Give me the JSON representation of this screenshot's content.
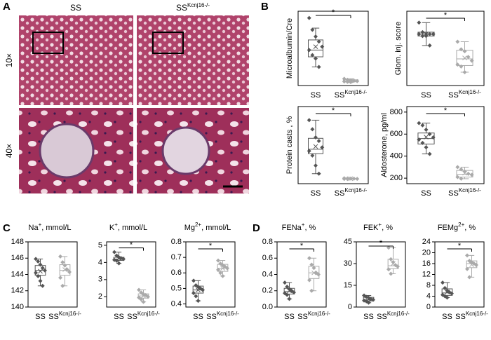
{
  "panels": [
    "A",
    "B",
    "C",
    "D"
  ],
  "panel_a": {
    "columns": [
      "SS",
      {
        "base": "SS",
        "sup": "Kcnj16-/-"
      }
    ],
    "rows": [
      "10×",
      "40×"
    ]
  },
  "chart_data": [
    {
      "type": "box",
      "ylabel": [
        {
          "text": "Microalbumin/Cre"
        }
      ],
      "annotation": "*",
      "categories": [
        {
          "base": "SS"
        },
        {
          "base": "SS",
          "sup": "Kcnj16-/-"
        }
      ],
      "ylim": [
        -0.1,
        2.1
      ],
      "boxes": [
        {
          "color": "#555555",
          "whislo": 0.45,
          "q1": 0.75,
          "med": 0.95,
          "q3": 1.25,
          "whishi": 1.6,
          "mean": 1.05,
          "points": [
            1.9,
            1.55,
            1.35,
            1.2,
            1.05,
            0.95,
            0.8,
            0.7,
            0.45
          ]
        },
        {
          "color": "#aaaaaa",
          "whislo": 0,
          "q1": 0.01,
          "med": 0.03,
          "q3": 0.07,
          "whishi": 0.1,
          "mean": 0.04,
          "points": [
            0.1,
            0.07,
            0.05,
            0.04,
            0.03,
            0.02,
            0.01,
            0
          ]
        }
      ]
    },
    {
      "type": "box",
      "ylabel": [
        {
          "text": "Glom. inj. score"
        }
      ],
      "annotation": "*",
      "categories": [
        {
          "base": "SS"
        },
        {
          "base": "SS",
          "sup": "Kcnj16-/-"
        }
      ],
      "ylim": [
        0.3,
        4.2
      ],
      "boxes": [
        {
          "color": "#555555",
          "whislo": 2.4,
          "q1": 2.9,
          "med": 3,
          "q3": 3.1,
          "whishi": 3.6,
          "mean": 3,
          "points": [
            3.6,
            3.1,
            3,
            3,
            3,
            3,
            2.9,
            2.9,
            2.4
          ]
        },
        {
          "color": "#aaaaaa",
          "whislo": 1.0,
          "q1": 1.35,
          "med": 1.7,
          "q3": 2.15,
          "whishi": 2.6,
          "mean": 1.75,
          "points": [
            2.6,
            2.2,
            2.1,
            1.8,
            1.6,
            1.4,
            1.3,
            1.0
          ]
        }
      ]
    },
    {
      "type": "box",
      "ylabel": [
        {
          "text": "Protein casts , %"
        }
      ],
      "annotation": "*",
      "categories": [
        {
          "base": "SS"
        },
        {
          "base": "SS",
          "sup": "Kcnj16-/-"
        }
      ],
      "ylim": [
        -0.5,
        8
      ],
      "boxes": [
        {
          "color": "#555555",
          "whislo": 0.6,
          "q1": 2.8,
          "med": 3.3,
          "q3": 4.5,
          "whishi": 6.5,
          "mean": 3.6,
          "points": [
            6.5,
            5.5,
            4.6,
            4.2,
            3.5,
            3.1,
            2.6,
            1.5,
            0.6
          ]
        },
        {
          "color": "#aaaaaa",
          "whislo": 0.01,
          "q1": 0.02,
          "med": 0.05,
          "q3": 0.08,
          "whishi": 0.1,
          "mean": 0.05,
          "points": [
            0.1,
            0.08,
            0.06,
            0.05,
            0.03,
            0.02,
            0.01
          ]
        }
      ]
    },
    {
      "type": "box",
      "ylabel": [
        {
          "text": "Aldosterone, pg/ml"
        }
      ],
      "annotation": "*",
      "categories": [
        {
          "base": "SS"
        },
        {
          "base": "SS",
          "sup": "Kcnj16-/-"
        }
      ],
      "ylim": [
        150,
        850
      ],
      "yticks": [
        200,
        400,
        600,
        800
      ],
      "boxes": [
        {
          "color": "#555555",
          "whislo": 420,
          "q1": 510,
          "med": 560,
          "q3": 610,
          "whishi": 700,
          "mean": 573,
          "points": [
            700,
            680,
            640,
            600,
            570,
            550,
            520,
            480,
            420
          ]
        },
        {
          "color": "#aaaaaa",
          "whislo": 195,
          "q1": 210,
          "med": 235,
          "q3": 270,
          "whishi": 300,
          "mean": 245,
          "points": [
            300,
            280,
            260,
            240,
            230,
            210,
            195
          ]
        }
      ]
    },
    {
      "type": "box",
      "ylabel": [
        {
          "text": "Na"
        },
        {
          "text": "+",
          "sup": true
        },
        {
          "text": ", mmol/L"
        }
      ],
      "categories": [
        {
          "base": "SS"
        },
        {
          "base": "SS",
          "sup": "Kcnj16-/-"
        }
      ],
      "ylim": [
        140,
        148
      ],
      "yticks": [
        140,
        142,
        144,
        146,
        148
      ],
      "boxes": [
        {
          "color": "#555555",
          "whislo": 142.6,
          "q1": 143.9,
          "med": 144.5,
          "q3": 145.1,
          "whishi": 145.9,
          "mean": 144.4,
          "points": [
            145.9,
            145.6,
            145.2,
            144.8,
            144.5,
            144.2,
            143.8,
            143.2,
            142.6
          ]
        },
        {
          "color": "#aaaaaa",
          "whislo": 142.6,
          "q1": 143.9,
          "med": 144.5,
          "q3": 145.2,
          "whishi": 146.2,
          "mean": 144.6,
          "points": [
            146.2,
            145.5,
            145.1,
            144.6,
            144.3,
            143.6,
            142.6
          ]
        }
      ]
    },
    {
      "type": "box",
      "ylabel": [
        {
          "text": "K"
        },
        {
          "text": "+",
          "sup": true
        },
        {
          "text": ", mmol/L"
        }
      ],
      "annotation": "*",
      "categories": [
        {
          "base": "SS"
        },
        {
          "base": "SS",
          "sup": "Kcnj16-/-"
        }
      ],
      "ylim": [
        1.4,
        5.2
      ],
      "yticks": [
        2,
        3,
        4,
        5
      ],
      "boxes": [
        {
          "color": "#555555",
          "whislo": 3.95,
          "q1": 4.12,
          "med": 4.2,
          "q3": 4.3,
          "whishi": 4.6,
          "mean": 4.23,
          "points": [
            4.6,
            4.4,
            4.3,
            4.25,
            4.2,
            4.15,
            4.1,
            3.95
          ]
        },
        {
          "color": "#aaaaaa",
          "whislo": 1.7,
          "q1": 1.92,
          "med": 2.05,
          "q3": 2.17,
          "whishi": 2.4,
          "mean": 2.05,
          "points": [
            2.4,
            2.25,
            2.15,
            2.1,
            2.0,
            1.95,
            1.85,
            1.7
          ]
        }
      ]
    },
    {
      "type": "box",
      "ylabel": [
        {
          "text": "Mg"
        },
        {
          "text": "2+",
          "sup": true
        },
        {
          "text": ", mmol/L"
        }
      ],
      "annotation": "*",
      "categories": [
        {
          "base": "SS"
        },
        {
          "base": "SS",
          "sup": "Kcnj16-/-"
        }
      ],
      "ylim": [
        0.38,
        0.8
      ],
      "yticks": [
        0.4,
        0.5,
        0.6,
        0.7,
        0.8
      ],
      "boxes": [
        {
          "color": "#555555",
          "whislo": 0.42,
          "q1": 0.47,
          "med": 0.49,
          "q3": 0.515,
          "whishi": 0.55,
          "mean": 0.49,
          "points": [
            0.55,
            0.52,
            0.51,
            0.5,
            0.49,
            0.47,
            0.45,
            0.42
          ]
        },
        {
          "color": "#aaaaaa",
          "whislo": 0.58,
          "q1": 0.61,
          "med": 0.63,
          "q3": 0.655,
          "whishi": 0.68,
          "mean": 0.63,
          "points": [
            0.68,
            0.66,
            0.65,
            0.64,
            0.63,
            0.62,
            0.6,
            0.58
          ]
        }
      ]
    },
    {
      "type": "box",
      "ylabel": [
        {
          "text": "FENa"
        },
        {
          "text": "+",
          "sup": true
        },
        {
          "text": ", %"
        }
      ],
      "annotation": "*",
      "categories": [
        {
          "base": "SS"
        },
        {
          "base": "SS",
          "sup": "Kcnj16-/-"
        }
      ],
      "ylim": [
        0,
        0.8
      ],
      "yticks": [
        {
          "value": 0,
          "label": "0.0"
        },
        0.2,
        0.4,
        0.6,
        0.8
      ],
      "boxes": [
        {
          "color": "#555555",
          "whislo": 0.1,
          "q1": 0.16,
          "med": 0.19,
          "q3": 0.23,
          "whishi": 0.3,
          "mean": 0.2,
          "points": [
            0.3,
            0.25,
            0.22,
            0.2,
            0.18,
            0.17,
            0.15,
            0.1
          ]
        },
        {
          "color": "#aaaaaa",
          "whislo": 0.2,
          "q1": 0.35,
          "med": 0.42,
          "q3": 0.5,
          "whishi": 0.6,
          "mean": 0.42,
          "points": [
            0.6,
            0.52,
            0.48,
            0.42,
            0.4,
            0.33,
            0.2
          ]
        }
      ]
    },
    {
      "type": "box",
      "ylabel": [
        {
          "text": "FEK"
        },
        {
          "text": "+",
          "sup": true
        },
        {
          "text": ", %"
        }
      ],
      "annotation": "*",
      "categories": [
        {
          "base": "SS"
        },
        {
          "base": "SS",
          "sup": "Kcnj16-/-"
        }
      ],
      "ylim": [
        0,
        45
      ],
      "yticks": [
        0,
        15,
        30,
        45
      ],
      "boxes": [
        {
          "color": "#555555",
          "whislo": 3,
          "q1": 4.2,
          "med": 5,
          "q3": 6.7,
          "whishi": 8,
          "mean": 5.4,
          "points": [
            8,
            7,
            6.5,
            5.5,
            5,
            4.5,
            4,
            3
          ]
        },
        {
          "color": "#aaaaaa",
          "whislo": 23,
          "q1": 26.5,
          "med": 28.5,
          "q3": 33,
          "whishi": 41,
          "mean": 30,
          "points": [
            41,
            33,
            31,
            29,
            28,
            26,
            23
          ]
        }
      ]
    },
    {
      "type": "box",
      "ylabel": [
        {
          "text": "FEMg"
        },
        {
          "text": "2+",
          "sup": true
        },
        {
          "text": ", %"
        }
      ],
      "annotation": "*",
      "categories": [
        {
          "base": "SS"
        },
        {
          "base": "SS",
          "sup": "Kcnj16-/-"
        }
      ],
      "ylim": [
        0,
        24
      ],
      "yticks": [
        0,
        4,
        8,
        12,
        16,
        20,
        24
      ],
      "boxes": [
        {
          "color": "#555555",
          "whislo": 3.5,
          "q1": 4.3,
          "med": 5.2,
          "q3": 6.7,
          "whishi": 9,
          "mean": 5.6,
          "points": [
            9,
            7,
            6,
            5.5,
            5,
            4.5,
            4,
            3.5
          ]
        },
        {
          "color": "#aaaaaa",
          "whislo": 11,
          "q1": 14.5,
          "med": 16,
          "q3": 17,
          "whishi": 19,
          "mean": 15.6,
          "points": [
            19,
            17,
            16.5,
            16,
            15.5,
            14,
            11
          ]
        }
      ]
    }
  ]
}
